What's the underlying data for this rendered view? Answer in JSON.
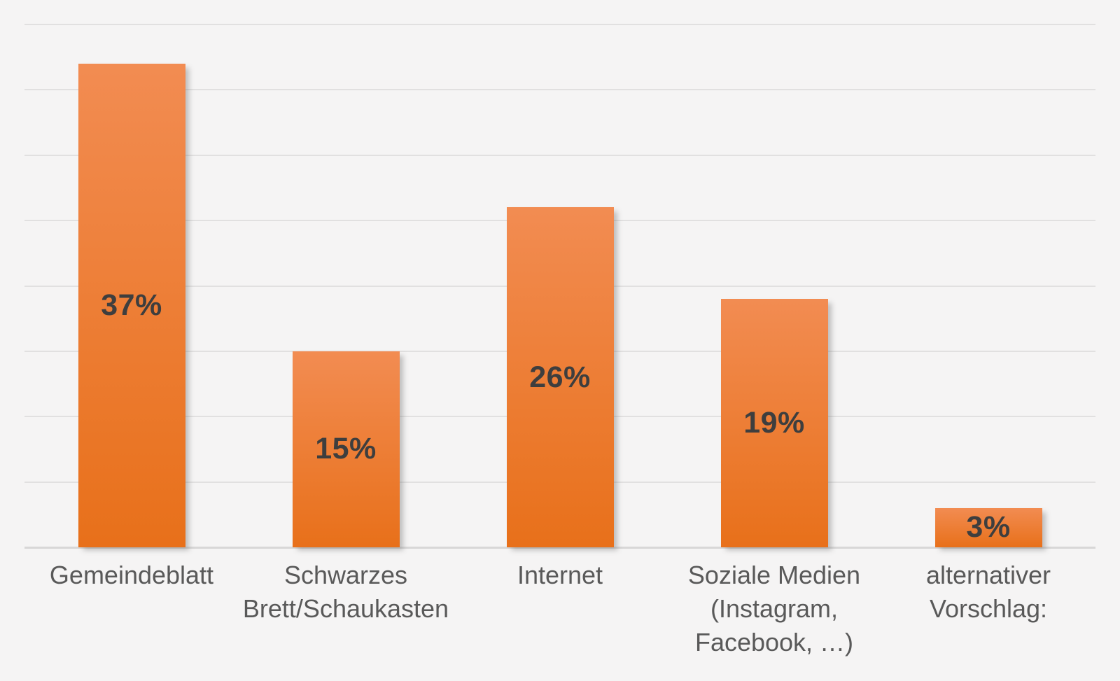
{
  "chart_data": {
    "type": "bar",
    "title": "",
    "xlabel": "",
    "ylabel": "",
    "categories": [
      "Gemeindeblatt",
      "Schwarzes Brett/Schaukasten",
      "Internet",
      "Soziale Medien (Instagram, Facebook, …)",
      "alternativer Vorschlag:"
    ],
    "categories_wrapped": [
      [
        "Gemeindeblatt"
      ],
      [
        "Schwarzes",
        "Brett/Schaukasten"
      ],
      [
        "Internet"
      ],
      [
        "Soziale Medien",
        "(Instagram,",
        "Facebook, …)"
      ],
      [
        "alternativer",
        "Vorschlag:"
      ]
    ],
    "values": [
      37,
      15,
      26,
      19,
      3
    ],
    "data_labels": [
      "37%",
      "15%",
      "26%",
      "19%",
      "3%"
    ],
    "ylim": [
      0,
      40
    ],
    "gridline_step": 5,
    "grid": true,
    "legend": false,
    "axis_tick_labels_visible": false,
    "colors": {
      "background": "#f5f4f4",
      "bar_gradient_top": "#f28c52",
      "bar_gradient_bottom": "#e8701a",
      "data_label": "#3e3e3e",
      "category_label": "#595959",
      "gridline": "#e1e0e0",
      "axis_line": "#d8d7d7"
    }
  }
}
